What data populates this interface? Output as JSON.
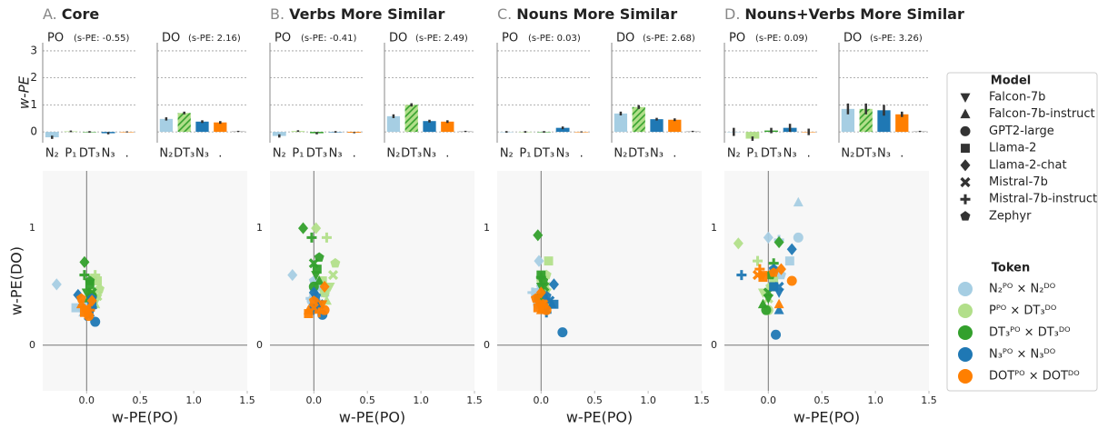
{
  "legend": {
    "model_title": "Model",
    "models": [
      {
        "name": "Falcon-7b",
        "marker": "v"
      },
      {
        "name": "Falcon-7b-instruct",
        "marker": "^"
      },
      {
        "name": "GPT2-large",
        "marker": "o"
      },
      {
        "name": "Llama-2",
        "marker": "s"
      },
      {
        "name": "Llama-2-chat",
        "marker": "D"
      },
      {
        "name": "Mistral-7b",
        "marker": "x"
      },
      {
        "name": "Mistral-7b-instruct",
        "marker": "+"
      },
      {
        "name": "Zephyr",
        "marker": "p"
      }
    ],
    "token_title": "Token",
    "tokens": [
      {
        "name": "N₂ᴾᴼ × N₂ᴰᴼ",
        "color": "#a6cee3"
      },
      {
        "name": "Pᴾᴼ × DT₃ᴰᴼ",
        "color": "#b2df8a"
      },
      {
        "name": "DT₃ᴾᴼ × DT₃ᴰᴼ",
        "color": "#33a02c"
      },
      {
        "name": "N₃ᴾᴼ × N₃ᴰᴼ",
        "color": "#1f78b4"
      },
      {
        "name": "DOTᴾᴼ × DOTᴰᴼ",
        "color": "#ff7f00"
      }
    ]
  },
  "chart_data": [
    {
      "type": "panel",
      "letter": "A.",
      "title": "Core",
      "po": {
        "type": "bar",
        "title": "PO",
        "subtitle": "(s-PE: -0.55)",
        "ylabel": "w-PE",
        "ytick_labels": true,
        "categories": [
          "N₂",
          "P₁",
          "DT₃",
          "N₃",
          "."
        ],
        "values": [
          -0.2,
          0.02,
          0.0,
          -0.05,
          0.0
        ],
        "errors": [
          0.06,
          0.03,
          0.03,
          0.04,
          0.02
        ],
        "colors": [
          "#a6cee3",
          "#b2df8a",
          "#33a02c",
          "#1f78b4",
          "#ff7f00"
        ],
        "hatch": [
          false,
          false,
          false,
          false,
          false
        ],
        "ylim": [
          -0.4,
          3.3
        ],
        "yticks": [
          0,
          1,
          2,
          3
        ]
      },
      "do": {
        "type": "bar",
        "title": "DO",
        "subtitle": "(s-PE: 2.16)",
        "ytick_labels": false,
        "categories": [
          "N₂",
          "DT₃",
          "N₃",
          ".",
          null
        ],
        "values": [
          0.48,
          0.7,
          0.38,
          0.35,
          0.02
        ],
        "errors": [
          0.06,
          0.05,
          0.05,
          0.05,
          0.02
        ],
        "colors": [
          "#a6cee3",
          "#b2df8a",
          "#1f78b4",
          "#ff7f00",
          "#999999"
        ],
        "hatch": [
          false,
          true,
          false,
          false,
          false
        ],
        "ylim": [
          -0.4,
          3.3
        ],
        "yticks": [
          0,
          1,
          2,
          3
        ]
      },
      "scatter": {
        "type": "scatter",
        "xlabel": "w-PE(PO)",
        "ylabel": "w-PE(DO)",
        "xlim": [
          -0.41,
          1.5
        ],
        "ylim": [
          -0.39,
          1.49
        ],
        "xticks": [
          {
            "value": 0,
            "label": "0.0"
          },
          0.5,
          {
            "value": 1,
            "label": "1.0"
          },
          1.5
        ],
        "yticks": [
          0,
          1
        ],
        "series": [
          {
            "x": [
              -0.05,
              -0.03,
              -0.02,
              -0.1,
              -0.28,
              0.0,
              -0.02,
              0.0
            ],
            "values": [
              0.3,
              0.28,
              0.35,
              0.32,
              0.52,
              0.3,
              0.3,
              0.33
            ]
          },
          {
            "x": [
              0.1,
              0.08,
              0.05,
              0.1,
              0.05,
              0.1,
              0.08,
              0.12
            ],
            "values": [
              0.4,
              0.35,
              0.45,
              0.55,
              0.55,
              0.42,
              0.6,
              0.48
            ]
          },
          {
            "x": [
              0.0,
              0.02,
              0.05,
              0.03,
              -0.02,
              0.05,
              -0.02,
              0.03
            ],
            "values": [
              0.45,
              0.4,
              0.42,
              0.52,
              0.71,
              0.45,
              0.6,
              0.55
            ]
          },
          {
            "x": [
              0.05,
              0.03,
              0.08,
              0.05,
              -0.08,
              0.02,
              0.05,
              0.05
            ],
            "values": [
              0.3,
              0.28,
              0.2,
              0.35,
              0.43,
              0.25,
              0.32,
              0.4
            ]
          },
          {
            "x": [
              -0.02,
              -0.05,
              0.02,
              -0.02,
              0.05,
              0.0,
              0.03,
              -0.05
            ],
            "values": [
              0.3,
              0.35,
              0.25,
              0.28,
              0.38,
              0.32,
              0.3,
              0.4
            ]
          }
        ]
      }
    },
    {
      "type": "panel",
      "letter": "B.",
      "title": "Verbs More Similar",
      "po": {
        "type": "bar",
        "title": "PO",
        "subtitle": "(s-PE: -0.41)",
        "ytick_labels": false,
        "categories": [
          "N₂",
          "P₁",
          "DT₃",
          "N₃",
          "."
        ],
        "values": [
          -0.15,
          0.03,
          -0.05,
          0.0,
          -0.03
        ],
        "errors": [
          0.06,
          0.03,
          0.04,
          0.03,
          0.02
        ],
        "colors": [
          "#a6cee3",
          "#b2df8a",
          "#33a02c",
          "#1f78b4",
          "#ff7f00"
        ],
        "hatch": [
          false,
          false,
          false,
          false,
          false
        ],
        "ylim": [
          -0.4,
          3.3
        ],
        "yticks": [
          0,
          1,
          2,
          3
        ]
      },
      "do": {
        "type": "bar",
        "title": "DO",
        "subtitle": "(s-PE: 2.49)",
        "ytick_labels": false,
        "categories": [
          "N₂",
          "DT₃",
          "N₃",
          ".",
          null
        ],
        "values": [
          0.58,
          1.0,
          0.4,
          0.38,
          0.02
        ],
        "errors": [
          0.07,
          0.06,
          0.05,
          0.05,
          0.02
        ],
        "colors": [
          "#a6cee3",
          "#b2df8a",
          "#1f78b4",
          "#ff7f00",
          "#999999"
        ],
        "hatch": [
          false,
          true,
          false,
          false,
          false
        ],
        "ylim": [
          -0.4,
          3.3
        ],
        "yticks": [
          0,
          1,
          2,
          3
        ]
      },
      "scatter": {
        "type": "scatter",
        "xlabel": "w-PE(PO)",
        "xlim": [
          -0.41,
          1.5
        ],
        "ylim": [
          -0.39,
          1.49
        ],
        "xticks": [
          {
            "value": 0,
            "label": "0.0"
          },
          0.5,
          {
            "value": 1,
            "label": "1.0"
          },
          1.5
        ],
        "yticks": [
          0,
          1
        ],
        "series": [
          {
            "x": [
              0.0,
              0.02,
              -0.02,
              0.05,
              -0.2,
              0.1,
              -0.03,
              0.0
            ],
            "values": [
              0.45,
              0.42,
              0.38,
              0.5,
              0.6,
              0.45,
              0.4,
              0.55
            ]
          },
          {
            "x": [
              0.15,
              0.12,
              0.1,
              0.08,
              0.02,
              0.18,
              0.12,
              0.2
            ],
            "values": [
              0.5,
              0.38,
              0.45,
              0.55,
              1.0,
              0.6,
              0.92,
              0.7
            ]
          },
          {
            "x": [
              0.02,
              0.05,
              0.0,
              0.03,
              -0.1,
              0.0,
              -0.02,
              0.05
            ],
            "values": [
              0.6,
              0.55,
              0.5,
              0.65,
              1.0,
              0.7,
              0.92,
              0.75
            ]
          },
          {
            "x": [
              0.0,
              0.05,
              0.08,
              0.0,
              0.0,
              0.05,
              -0.02,
              0.02
            ],
            "values": [
              0.3,
              0.35,
              0.26,
              0.32,
              0.45,
              0.35,
              0.3,
              0.42
            ]
          },
          {
            "x": [
              0.08,
              -0.05,
              0.1,
              -0.05,
              0.1,
              0.0,
              0.05,
              0.0
            ],
            "values": [
              0.35,
              0.3,
              0.3,
              0.27,
              0.5,
              0.32,
              0.28,
              0.38
            ]
          }
        ]
      }
    },
    {
      "type": "panel",
      "letter": "C.",
      "title": "Nouns More Similar",
      "po": {
        "type": "bar",
        "title": "PO",
        "subtitle": "(s-PE: 0.03)",
        "ytick_labels": false,
        "categories": [
          "N₂",
          "P₁",
          "DT₃",
          "N₃",
          "."
        ],
        "values": [
          0.0,
          0.0,
          0.0,
          0.15,
          0.0
        ],
        "errors": [
          0.03,
          0.03,
          0.03,
          0.05,
          0.02
        ],
        "colors": [
          "#a6cee3",
          "#b2df8a",
          "#33a02c",
          "#1f78b4",
          "#ff7f00"
        ],
        "hatch": [
          false,
          false,
          false,
          false,
          false
        ],
        "ylim": [
          -0.4,
          3.3
        ],
        "yticks": [
          0,
          1,
          2,
          3
        ]
      },
      "do": {
        "type": "bar",
        "title": "DO",
        "subtitle": "(s-PE: 2.68)",
        "ytick_labels": false,
        "categories": [
          "N₂",
          "DT₃",
          "N₃",
          ".",
          null
        ],
        "values": [
          0.68,
          0.92,
          0.47,
          0.45,
          0.02
        ],
        "errors": [
          0.07,
          0.07,
          0.05,
          0.05,
          0.02
        ],
        "colors": [
          "#a6cee3",
          "#b2df8a",
          "#1f78b4",
          "#ff7f00",
          "#999999"
        ],
        "hatch": [
          false,
          true,
          false,
          false,
          false
        ],
        "ylim": [
          -0.4,
          3.3
        ],
        "yticks": [
          0,
          1,
          2,
          3
        ]
      },
      "scatter": {
        "type": "scatter",
        "xlabel": "w-PE(PO)",
        "xlim": [
          -0.41,
          1.5
        ],
        "ylim": [
          -0.39,
          1.49
        ],
        "xticks": [
          {
            "value": 0,
            "label": "0.0"
          },
          0.5,
          {
            "value": 1,
            "label": "1.0"
          },
          1.5
        ],
        "yticks": [
          0,
          1
        ],
        "series": [
          {
            "x": [
              -0.05,
              -0.02,
              -0.03,
              -0.05,
              -0.02,
              0.0,
              -0.08,
              0.0
            ],
            "values": [
              0.4,
              0.38,
              0.35,
              0.45,
              0.72,
              0.4,
              0.45,
              0.5
            ]
          },
          {
            "x": [
              0.05,
              0.03,
              0.08,
              0.07,
              0.0,
              0.05,
              0.03,
              0.05
            ],
            "values": [
              0.45,
              0.4,
              0.35,
              0.72,
              0.55,
              0.5,
              0.58,
              0.6
            ]
          },
          {
            "x": [
              0.0,
              0.02,
              -0.02,
              0.0,
              -0.03,
              0.03,
              0.0,
              0.02
            ],
            "values": [
              0.5,
              0.45,
              0.4,
              0.6,
              0.94,
              0.5,
              0.58,
              0.55
            ]
          },
          {
            "x": [
              0.05,
              0.1,
              0.2,
              0.12,
              0.12,
              0.08,
              0.05,
              0.05
            ],
            "values": [
              0.3,
              0.35,
              0.11,
              0.35,
              0.52,
              0.38,
              0.28,
              0.42
            ]
          },
          {
            "x": [
              -0.02,
              0.0,
              0.05,
              -0.03,
              0.0,
              0.02,
              0.02,
              -0.05
            ],
            "values": [
              0.35,
              0.3,
              0.3,
              0.32,
              0.45,
              0.35,
              0.35,
              0.4
            ]
          }
        ]
      }
    },
    {
      "type": "panel",
      "letter": "D.",
      "title": "Nouns+Verbs More Similar",
      "po": {
        "type": "bar",
        "title": "PO",
        "subtitle": "(s-PE: 0.09)",
        "ytick_labels": false,
        "categories": [
          "N₂",
          "P₁",
          "DT₃",
          "N₃",
          "."
        ],
        "values": [
          0.0,
          -0.25,
          0.05,
          0.15,
          0.0
        ],
        "errors": [
          0.15,
          0.08,
          0.1,
          0.15,
          0.12
        ],
        "colors": [
          "#a6cee3",
          "#b2df8a",
          "#33a02c",
          "#1f78b4",
          "#ff7f00"
        ],
        "hatch": [
          false,
          false,
          false,
          false,
          false
        ],
        "ylim": [
          -0.4,
          3.3
        ],
        "yticks": [
          0,
          1,
          2,
          3
        ]
      },
      "do": {
        "type": "bar",
        "title": "DO",
        "subtitle": "(s-PE: 3.26)",
        "ytick_labels": false,
        "categories": [
          "N₂",
          "DT₃",
          "N₃",
          ".",
          null
        ],
        "values": [
          0.85,
          0.85,
          0.8,
          0.65,
          0.02
        ],
        "errors": [
          0.2,
          0.2,
          0.2,
          0.1,
          0.02
        ],
        "colors": [
          "#a6cee3",
          "#b2df8a",
          "#1f78b4",
          "#ff7f00",
          "#999999"
        ],
        "hatch": [
          false,
          true,
          false,
          false,
          false
        ],
        "ylim": [
          -0.4,
          3.3
        ],
        "yticks": [
          0,
          1,
          2,
          3
        ]
      },
      "scatter": {
        "type": "scatter",
        "xlabel": "w-PE(PO)",
        "xlim": [
          -0.41,
          1.5
        ],
        "ylim": [
          -0.39,
          1.49
        ],
        "xticks": [
          {
            "value": 0,
            "label": "0.0"
          },
          0.5,
          {
            "value": 1,
            "label": "1.0"
          },
          1.5
        ],
        "yticks": [
          0,
          1
        ],
        "series": [
          {
            "x": [
              0.08,
              0.28,
              0.28,
              0.2,
              0.0,
              0.05,
              0.1,
              0.12
            ],
            "values": [
              0.6,
              1.22,
              0.92,
              0.72,
              0.92,
              0.55,
              0.9,
              0.6
            ]
          },
          {
            "x": [
              -0.05,
              -0.05,
              0.0,
              0.05,
              -0.28,
              0.0,
              -0.1,
              0.02
            ],
            "values": [
              0.45,
              0.35,
              0.3,
              0.55,
              0.87,
              0.4,
              0.72,
              0.5
            ]
          },
          {
            "x": [
              0.0,
              -0.05,
              -0.02,
              0.05,
              0.1,
              0.0,
              0.05,
              0.02
            ],
            "values": [
              0.4,
              0.35,
              0.3,
              0.5,
              0.88,
              0.45,
              0.7,
              0.6
            ]
          },
          {
            "x": [
              0.1,
              0.1,
              0.07,
              0.05,
              0.22,
              0.1,
              -0.25,
              0.05
            ],
            "values": [
              0.45,
              0.3,
              0.09,
              0.5,
              0.82,
              0.5,
              0.6,
              0.65
            ]
          },
          {
            "x": [
              -0.05,
              0.1,
              0.22,
              -0.05,
              0.12,
              -0.1,
              -0.08,
              0.05
            ],
            "values": [
              0.6,
              0.35,
              0.55,
              0.58,
              0.65,
              0.6,
              0.65,
              0.62
            ]
          }
        ]
      }
    }
  ]
}
